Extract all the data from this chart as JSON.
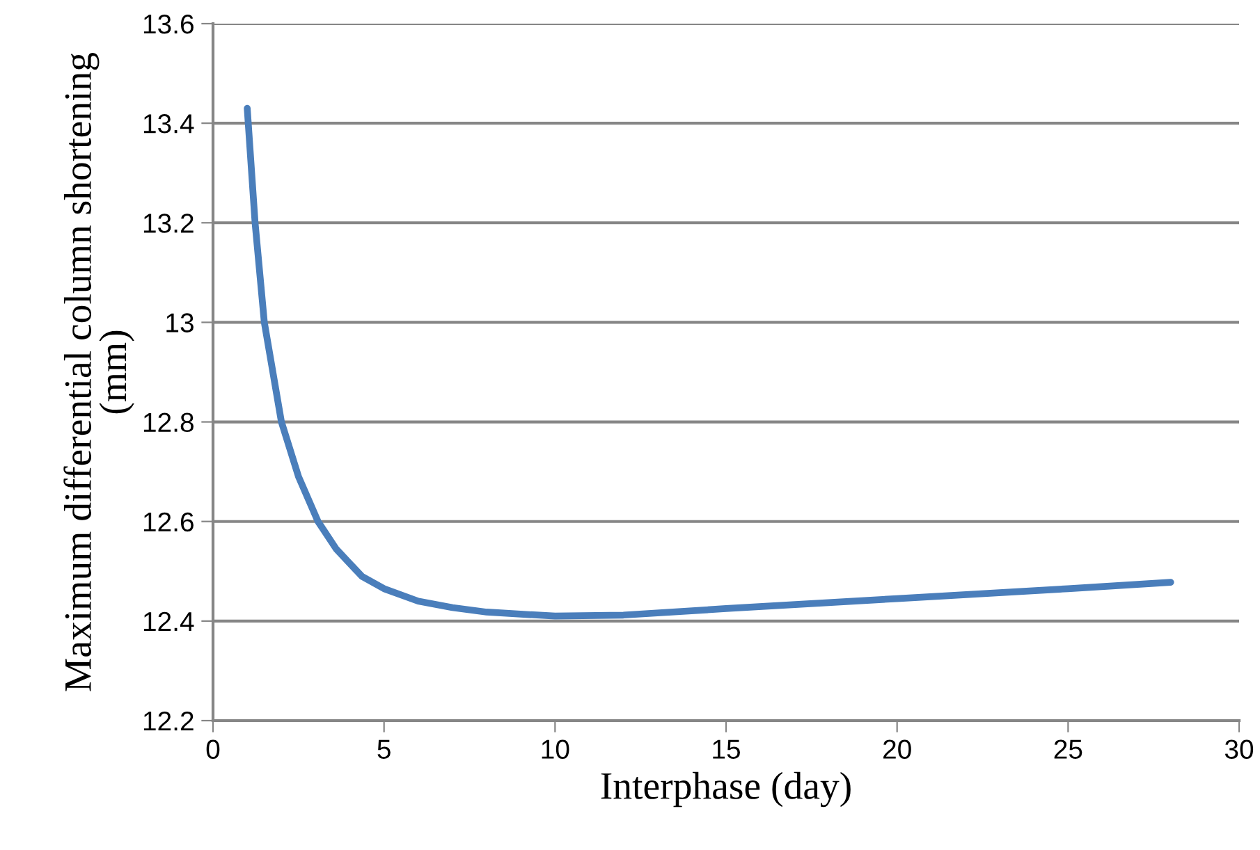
{
  "chart_data": {
    "type": "line",
    "xlabel": "Interphase (day)",
    "ylabel": "Maximum differential column shortening\n(mm)",
    "xlim": [
      0,
      30
    ],
    "xticks": [
      0,
      5,
      10,
      15,
      20,
      25,
      30
    ],
    "ylim": [
      12.2,
      13.6
    ],
    "yticks": [
      12.2,
      12.4,
      12.6,
      12.8,
      13,
      13.2,
      13.4,
      13.6
    ],
    "grid": "y",
    "marker": "none",
    "line_style": "solid",
    "series": [
      {
        "color": "#4a7ebb",
        "x": [
          1,
          1.23,
          1.5,
          2,
          2.5,
          3.07,
          3.6,
          4.35,
          5,
          6,
          7,
          8,
          10,
          12,
          15,
          20,
          25,
          28
        ],
        "values": [
          13.43,
          13.2,
          13.0,
          12.8,
          12.69,
          12.6,
          12.545,
          12.49,
          12.465,
          12.44,
          12.427,
          12.418,
          12.41,
          12.412,
          12.425,
          12.445,
          12.465,
          12.478
        ]
      }
    ]
  }
}
